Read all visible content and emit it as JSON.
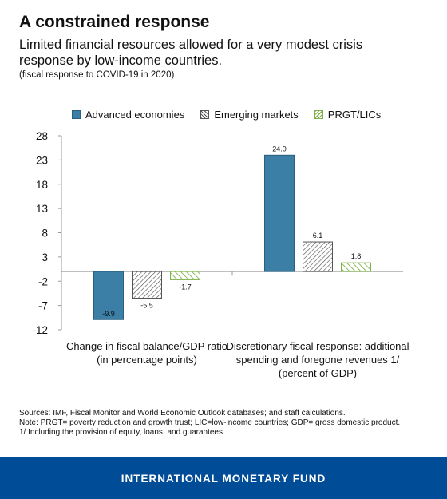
{
  "header": {
    "title": "A constrained response",
    "subtitle": "Limited financial resources allowed for a very modest crisis response by low-income countries.",
    "note": "(fiscal response to COVID-19 in 2020)"
  },
  "footer": {
    "brand": "INTERNATIONAL MONETARY FUND",
    "sources": "Sources: IMF, Fiscal Monitor and World Economic Outlook databases; and staff calculations.",
    "note1": "Note: PRGT= poverty reduction and growth trust; LIC=low-income countries;  GDP= gross domestic product.",
    "note2": "1/ Including the provision of equity, loans, and guarantees."
  },
  "chart_data": {
    "type": "bar",
    "categories": [
      [
        "Change in fiscal balance/GDP ratio",
        "(in percentage points)"
      ],
      [
        "Discretionary fiscal response: additional",
        "spending and foregone revenues 1/",
        "(percent of GDP)"
      ]
    ],
    "series": [
      {
        "name": "Advanced economies",
        "values": [
          -9.9,
          24.0
        ],
        "labels": [
          "-9.9",
          "24.0"
        ],
        "color": "#3b7fa6",
        "pattern": "solid"
      },
      {
        "name": "Emerging markets",
        "values": [
          -5.5,
          6.1
        ],
        "labels": [
          "-5.5",
          "6.1"
        ],
        "color": "#555555",
        "pattern": "hatch-dark"
      },
      {
        "name": "PRGT/LICs",
        "values": [
          -1.7,
          1.8
        ],
        "labels": [
          "-1.7",
          "1.8"
        ],
        "color": "#7fb24a",
        "pattern": "hatch-green"
      }
    ],
    "yticks": [
      28,
      23,
      18,
      13,
      8,
      3,
      -2,
      -7,
      -12
    ],
    "ylim": [
      -12,
      28
    ],
    "grid": false,
    "legend_position": "top"
  }
}
